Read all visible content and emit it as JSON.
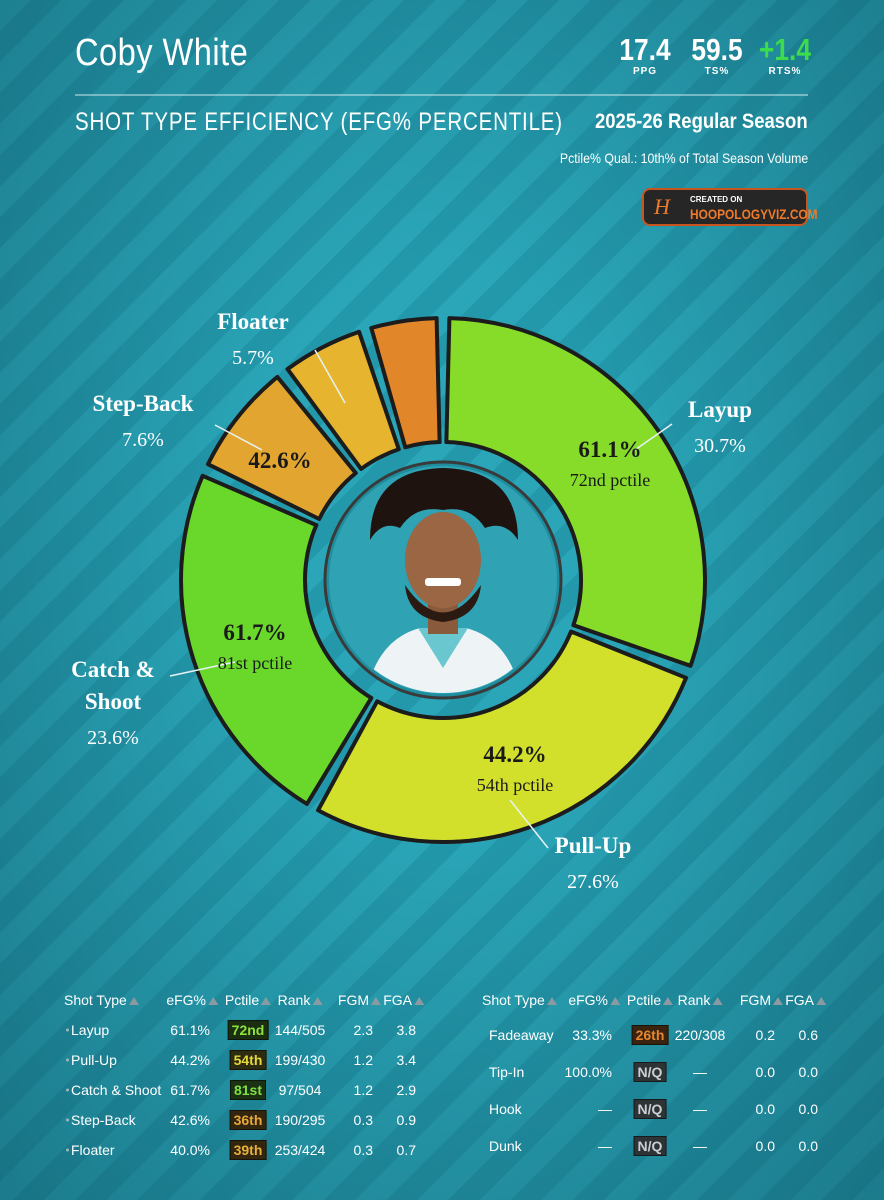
{
  "header": {
    "name": "Coby White",
    "stats": [
      {
        "value": "17.4",
        "label": "PPG",
        "color": "#ffffff"
      },
      {
        "value": "59.5",
        "label": "TS%",
        "color": "#ffffff"
      },
      {
        "value": "+1.4",
        "label": "RTS%",
        "color": "#3ddc4a"
      }
    ],
    "title": "SHOT TYPE EFFICIENCY (EFG% PERCENTILE)",
    "season": "2025-26 Regular Season",
    "qualifier": "Pctile% Qual.: 10th% of Total Season Volume",
    "badge": {
      "top": "CREATED ON",
      "site": "HOOPOLOGYVIZ.COM"
    }
  },
  "chart_data": {
    "type": "donut",
    "categories": [
      "Layup",
      "Pull-Up",
      "Catch & Shoot",
      "Step-Back",
      "Floater",
      null
    ],
    "values": [
      30.7,
      27.6,
      23.6,
      7.6,
      5.7,
      4.8
    ],
    "value_labels": [
      "30.7%",
      "27.6%",
      "23.6%",
      "7.6%",
      "5.7%",
      null
    ],
    "colors": [
      "#86dc28",
      "#d2e02c",
      "#6ad82a",
      "#e2a630",
      "#e6b42e",
      "#e2862a"
    ],
    "efg_labels": [
      "61.1%",
      "44.2%",
      "61.7%",
      "42.6%",
      null,
      null
    ],
    "pctile_labels": [
      "72nd pctile",
      "54th pctile",
      "81st pctile",
      null,
      null,
      null
    ]
  },
  "tables": [
    {
      "columns": [
        "Shot Type",
        "eFG%",
        "Pctile",
        "Rank",
        "FGM",
        "FGA"
      ],
      "rows": [
        [
          "Layup",
          "61.1%",
          "72nd",
          "144/505",
          "2.3",
          "3.8"
        ],
        [
          "Pull-Up",
          "44.2%",
          "54th",
          "199/430",
          "1.2",
          "3.4"
        ],
        [
          "Catch & Shoot",
          "61.7%",
          "81st",
          "97/504",
          "1.2",
          "2.9"
        ],
        [
          "Step-Back",
          "42.6%",
          "36th",
          "190/295",
          "0.3",
          "0.9"
        ],
        [
          "Floater",
          "40.0%",
          "39th",
          "253/424",
          "0.3",
          "0.7"
        ]
      ],
      "pctile_colors": [
        {
          "bg": "#1c2e12",
          "fg": "#8ee33a"
        },
        {
          "bg": "#2e2c10",
          "fg": "#e4d83a"
        },
        {
          "bg": "#1c3012",
          "fg": "#7de045"
        },
        {
          "bg": "#33260f",
          "fg": "#e8a83a"
        },
        {
          "bg": "#33260f",
          "fg": "#e8b03a"
        }
      ]
    },
    {
      "columns": [
        "Shot Type",
        "eFG%",
        "Pctile",
        "Rank",
        "FGM",
        "FGA"
      ],
      "rows": [
        [
          "Fadeaway",
          "33.3%",
          "26th",
          "220/308",
          "0.2",
          "0.6"
        ],
        [
          "Tip-In",
          "100.0%",
          "N/Q",
          "—",
          "0.0",
          "0.0"
        ],
        [
          "Hook",
          "—",
          "N/Q",
          "—",
          "0.0",
          "0.0"
        ],
        [
          "Dunk",
          "—",
          "N/Q",
          "—",
          "0.0",
          "0.0"
        ]
      ],
      "pctile_colors": [
        {
          "bg": "#3a2410",
          "fg": "#e8862e"
        },
        {
          "bg": "#2e3336",
          "fg": "#c9d0d3"
        },
        {
          "bg": "#2e3336",
          "fg": "#c9d0d3"
        },
        {
          "bg": "#2e3336",
          "fg": "#c9d0d3"
        }
      ]
    }
  ]
}
